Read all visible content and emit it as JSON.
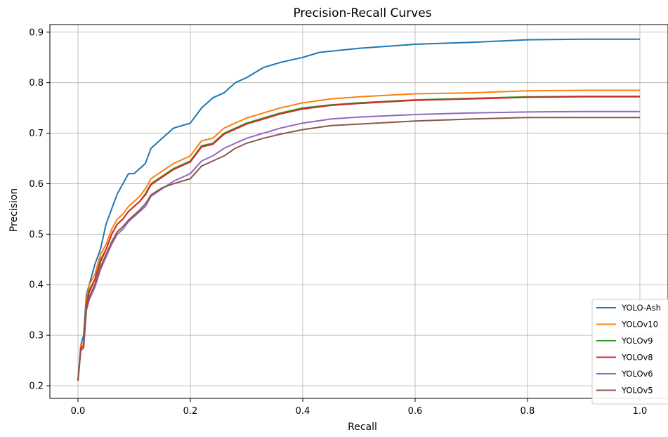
{
  "chart_data": {
    "type": "line",
    "title": "Precision-Recall Curves",
    "xlabel": "Recall",
    "ylabel": "Precision",
    "xlim": [
      -0.05,
      1.05
    ],
    "ylim": [
      0.175,
      0.915
    ],
    "xticks": [
      "0.0",
      "0.2",
      "0.4",
      "0.6",
      "0.8",
      "1.0"
    ],
    "yticks": [
      "0.2",
      "0.3",
      "0.4",
      "0.5",
      "0.6",
      "0.7",
      "0.8",
      "0.9"
    ],
    "grid": true,
    "legend_position": "lower-right",
    "series": [
      {
        "name": "YOLO-Ash",
        "color": "#1f77b4",
        "x": [
          0.0,
          0.005,
          0.01,
          0.015,
          0.02,
          0.03,
          0.04,
          0.05,
          0.06,
          0.07,
          0.08,
          0.09,
          0.1,
          0.11,
          0.12,
          0.13,
          0.15,
          0.17,
          0.2,
          0.22,
          0.24,
          0.26,
          0.28,
          0.3,
          0.33,
          0.36,
          0.4,
          0.43,
          0.5,
          0.6,
          0.7,
          0.8,
          0.9,
          1.0
        ],
        "y": [
          0.21,
          0.28,
          0.3,
          0.38,
          0.4,
          0.44,
          0.47,
          0.52,
          0.55,
          0.58,
          0.6,
          0.62,
          0.62,
          0.63,
          0.64,
          0.67,
          0.69,
          0.71,
          0.72,
          0.75,
          0.77,
          0.78,
          0.8,
          0.81,
          0.83,
          0.84,
          0.85,
          0.86,
          0.868,
          0.876,
          0.88,
          0.885,
          0.886,
          0.886
        ]
      },
      {
        "name": "YOLOv10",
        "color": "#ff7f0e",
        "x": [
          0.0,
          0.005,
          0.01,
          0.015,
          0.02,
          0.03,
          0.04,
          0.05,
          0.06,
          0.07,
          0.08,
          0.09,
          0.1,
          0.11,
          0.12,
          0.13,
          0.15,
          0.17,
          0.2,
          0.22,
          0.24,
          0.26,
          0.28,
          0.3,
          0.33,
          0.36,
          0.4,
          0.45,
          0.5,
          0.6,
          0.7,
          0.8,
          0.9,
          1.0
        ],
        "y": [
          0.21,
          0.28,
          0.285,
          0.37,
          0.4,
          0.42,
          0.46,
          0.48,
          0.51,
          0.53,
          0.54,
          0.555,
          0.565,
          0.575,
          0.59,
          0.61,
          0.625,
          0.64,
          0.655,
          0.685,
          0.69,
          0.71,
          0.72,
          0.73,
          0.74,
          0.75,
          0.76,
          0.768,
          0.772,
          0.778,
          0.78,
          0.784,
          0.785,
          0.785
        ]
      },
      {
        "name": "YOLOv9",
        "color": "#2ca02c",
        "x": [
          0.0,
          0.005,
          0.01,
          0.015,
          0.02,
          0.03,
          0.04,
          0.05,
          0.06,
          0.07,
          0.08,
          0.09,
          0.1,
          0.11,
          0.12,
          0.13,
          0.15,
          0.17,
          0.2,
          0.22,
          0.24,
          0.26,
          0.28,
          0.3,
          0.33,
          0.36,
          0.4,
          0.45,
          0.5,
          0.6,
          0.7,
          0.8,
          0.9,
          1.0
        ],
        "y": [
          0.21,
          0.275,
          0.28,
          0.36,
          0.39,
          0.41,
          0.45,
          0.47,
          0.5,
          0.52,
          0.53,
          0.545,
          0.555,
          0.565,
          0.58,
          0.6,
          0.615,
          0.63,
          0.645,
          0.675,
          0.68,
          0.7,
          0.71,
          0.72,
          0.73,
          0.74,
          0.75,
          0.756,
          0.76,
          0.766,
          0.769,
          0.772,
          0.773,
          0.773
        ]
      },
      {
        "name": "YOLOv8",
        "color": "#d62728",
        "x": [
          0.0,
          0.005,
          0.01,
          0.015,
          0.02,
          0.03,
          0.04,
          0.05,
          0.06,
          0.07,
          0.08,
          0.09,
          0.1,
          0.11,
          0.12,
          0.13,
          0.15,
          0.17,
          0.2,
          0.22,
          0.24,
          0.26,
          0.28,
          0.3,
          0.33,
          0.36,
          0.4,
          0.45,
          0.5,
          0.6,
          0.7,
          0.8,
          0.9,
          1.0
        ],
        "y": [
          0.21,
          0.275,
          0.28,
          0.36,
          0.385,
          0.41,
          0.445,
          0.47,
          0.5,
          0.52,
          0.53,
          0.545,
          0.555,
          0.565,
          0.578,
          0.598,
          0.613,
          0.628,
          0.643,
          0.673,
          0.678,
          0.698,
          0.708,
          0.718,
          0.728,
          0.738,
          0.748,
          0.755,
          0.759,
          0.765,
          0.768,
          0.771,
          0.772,
          0.772
        ]
      },
      {
        "name": "YOLOv6",
        "color": "#9467bd",
        "x": [
          0.0,
          0.005,
          0.01,
          0.015,
          0.02,
          0.03,
          0.04,
          0.05,
          0.06,
          0.07,
          0.08,
          0.09,
          0.1,
          0.11,
          0.12,
          0.13,
          0.15,
          0.17,
          0.2,
          0.22,
          0.24,
          0.26,
          0.28,
          0.3,
          0.33,
          0.36,
          0.4,
          0.45,
          0.5,
          0.6,
          0.7,
          0.8,
          0.9,
          1.0
        ],
        "y": [
          0.21,
          0.27,
          0.275,
          0.35,
          0.37,
          0.395,
          0.43,
          0.455,
          0.48,
          0.5,
          0.51,
          0.525,
          0.535,
          0.545,
          0.555,
          0.575,
          0.59,
          0.605,
          0.62,
          0.645,
          0.655,
          0.67,
          0.68,
          0.69,
          0.7,
          0.71,
          0.72,
          0.728,
          0.732,
          0.737,
          0.74,
          0.742,
          0.743,
          0.743
        ]
      },
      {
        "name": "YOLOv5",
        "color": "#8c564b",
        "x": [
          0.0,
          0.005,
          0.01,
          0.015,
          0.02,
          0.03,
          0.04,
          0.05,
          0.06,
          0.07,
          0.08,
          0.09,
          0.1,
          0.11,
          0.12,
          0.13,
          0.15,
          0.17,
          0.2,
          0.22,
          0.24,
          0.26,
          0.28,
          0.3,
          0.33,
          0.36,
          0.4,
          0.45,
          0.5,
          0.6,
          0.7,
          0.8,
          0.9,
          1.0
        ],
        "y": [
          0.21,
          0.27,
          0.275,
          0.35,
          0.375,
          0.4,
          0.435,
          0.46,
          0.485,
          0.505,
          0.515,
          0.528,
          0.538,
          0.548,
          0.56,
          0.578,
          0.592,
          0.6,
          0.61,
          0.635,
          0.645,
          0.655,
          0.67,
          0.68,
          0.69,
          0.698,
          0.707,
          0.715,
          0.718,
          0.724,
          0.728,
          0.731,
          0.731,
          0.731
        ]
      }
    ]
  }
}
